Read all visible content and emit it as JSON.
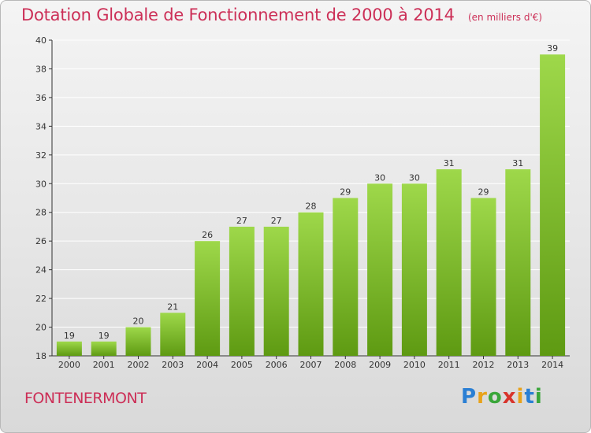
{
  "header": {
    "title": "Dotation Globale de Fonctionnement de 2000 à 2014",
    "subtitle": "(en milliers d'€)"
  },
  "footer": {
    "commune": "FONTENERMONT",
    "logo_text": "Proxiti"
  },
  "colors": {
    "title": "#cc2f57",
    "bar_top": "#9ed84a",
    "bar_bottom": "#5e9a12",
    "axis": "#333333",
    "grid": "#ffffff"
  },
  "chart_data": {
    "type": "bar",
    "title": "Dotation Globale de Fonctionnement de 2000 à 2014",
    "subtitle": "(en milliers d'€)",
    "categories": [
      "2000",
      "2001",
      "2002",
      "2003",
      "2004",
      "2005",
      "2006",
      "2007",
      "2008",
      "2009",
      "2010",
      "2011",
      "2012",
      "2013",
      "2014"
    ],
    "values": [
      19,
      19,
      20,
      21,
      26,
      27,
      27,
      28,
      29,
      30,
      30,
      31,
      29,
      31,
      39
    ],
    "data_labels": [
      "19",
      "19",
      "20",
      "21",
      "26",
      "27",
      "27",
      "28",
      "29",
      "30",
      "30",
      "31",
      "29",
      "31",
      "39"
    ],
    "ylim": [
      18,
      40
    ],
    "yticks": [
      18,
      20,
      22,
      24,
      26,
      28,
      30,
      32,
      34,
      36,
      38,
      40
    ],
    "grid": true,
    "xlabel": "",
    "ylabel": ""
  }
}
